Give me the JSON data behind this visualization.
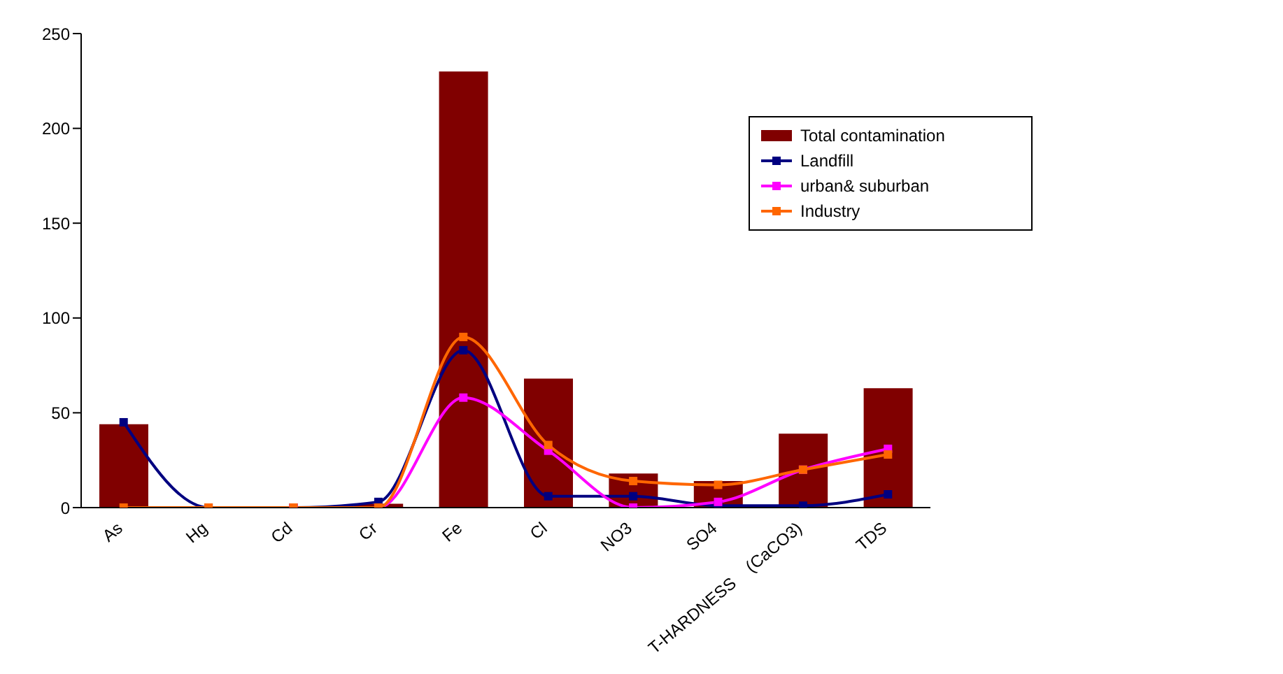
{
  "chart_data": {
    "type": "bar",
    "categories": [
      "As",
      "Hg",
      "Cd",
      "Cr",
      "Fe",
      "Cl",
      "NO3",
      "SO4",
      "T-HARDNESS    (CaCO3)",
      "TDS"
    ],
    "series": [
      {
        "name": "Total contamination",
        "color": "#800000",
        "values": [
          44,
          null,
          null,
          2,
          230,
          68,
          18,
          14,
          39,
          63
        ]
      },
      {
        "name": "Landfill",
        "type": "line",
        "color": "#000080",
        "values": [
          45,
          0,
          0,
          3,
          83,
          6,
          6,
          1,
          1,
          7
        ]
      },
      {
        "name": "urban& suburban",
        "type": "line",
        "color": "#ff00ff",
        "values": [
          null,
          null,
          0,
          0,
          58,
          30,
          0,
          3,
          20,
          31
        ]
      },
      {
        "name": "Industry",
        "type": "line",
        "color": "#ff6600",
        "values": [
          0,
          0,
          0,
          0,
          90,
          33,
          14,
          12,
          20,
          28
        ]
      }
    ],
    "ylim": [
      0,
      250
    ],
    "yticks": [
      0,
      50,
      100,
      150,
      200,
      250
    ],
    "legend": "top right",
    "marker": "square",
    "line_style": "solid"
  }
}
